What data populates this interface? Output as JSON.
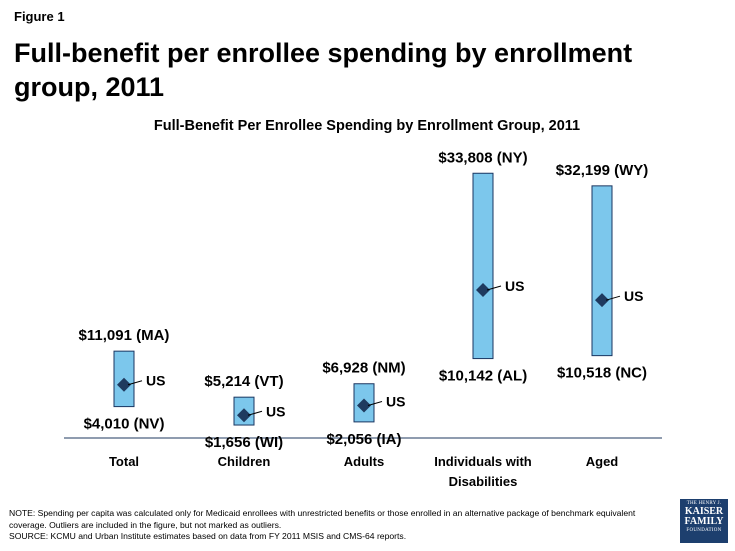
{
  "figure_label": "Figure 1",
  "page_title": "Full-benefit per enrollee spending by enrollment group, 2011",
  "chart_data": {
    "type": "range",
    "title": "Full-Benefit Per Enrollee Spending by Enrollment Group, 2011",
    "categories": [
      "Total",
      "Children",
      "Adults",
      "Individuals with Disabilities",
      "Aged"
    ],
    "series": [
      {
        "name": "max",
        "values": [
          11091,
          5214,
          6928,
          33808,
          32199
        ]
      },
      {
        "name": "min",
        "values": [
          4010,
          1656,
          2056,
          10142,
          10518
        ]
      },
      {
        "name": "US",
        "values": [
          6800,
          2900,
          4150,
          18900,
          17600
        ]
      }
    ],
    "max_labels": [
      "$11,091 (MA)",
      "$5,214 (VT)",
      "$6,928 (NM)",
      "$33,808 (NY)",
      "$32,199 (WY)"
    ],
    "min_labels": [
      "$4,010 (NV)",
      "$1,656 (WI)",
      "$2,056 (IA)",
      "$10,142 (AL)",
      "$10,518  (NC)"
    ],
    "us_label": "US",
    "ylim": [
      0,
      35500
    ],
    "colors": {
      "bar_fill": "#7cc7ec",
      "bar_stroke": "#1a3560",
      "marker": "#1f3a5f",
      "axis": "#1f3a5f"
    }
  },
  "note_lines": [
    "NOTE: Spending per capita was calculated only for Medicaid enrollees with unrestricted benefits or those enrolled in an alternative package of benchmark equivalent coverage. Outliers are included in the figure, but not marked as outliers.",
    "SOURCE: KCMU and Urban Institute estimates based on data from FY 2011 MSIS and CMS-64 reports."
  ],
  "logo": {
    "line1": "THE HENRY J.",
    "line2": "KAISER",
    "line3": "FAMILY",
    "line4": "FOUNDATION"
  }
}
